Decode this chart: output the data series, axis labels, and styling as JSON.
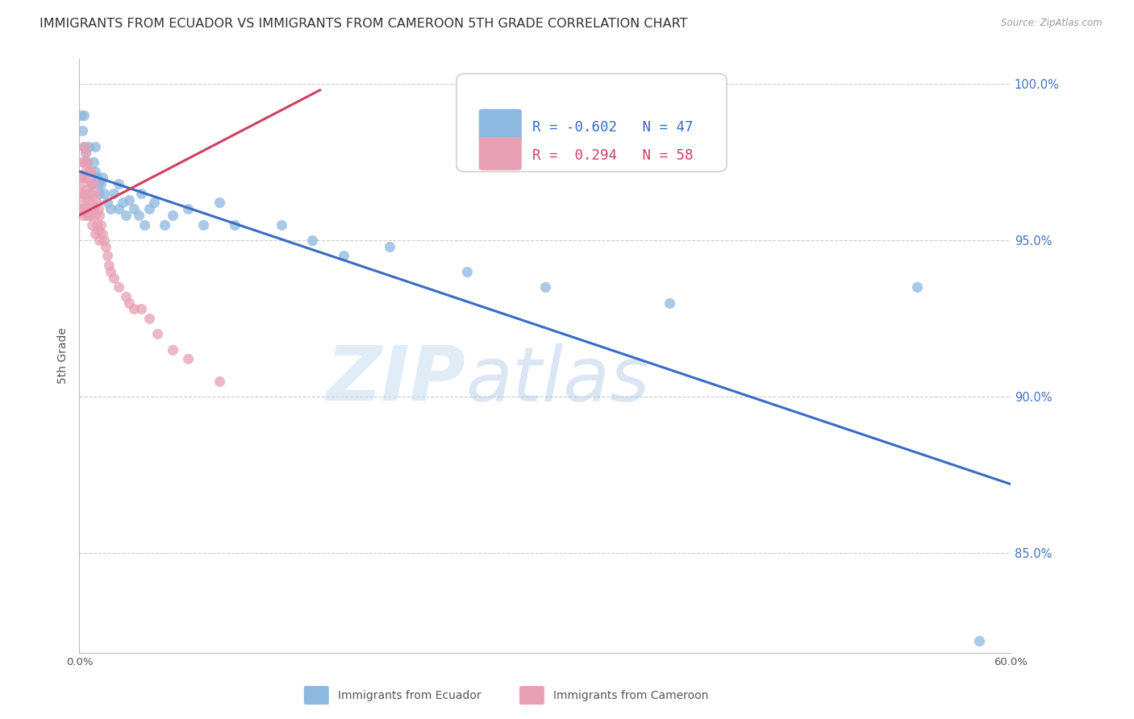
{
  "title": "IMMIGRANTS FROM ECUADOR VS IMMIGRANTS FROM CAMEROON 5TH GRADE CORRELATION CHART",
  "source": "Source: ZipAtlas.com",
  "ylabel": "5th Grade",
  "xlim": [
    0.0,
    0.6
  ],
  "ylim": [
    0.818,
    1.008
  ],
  "xticks": [
    0.0,
    0.1,
    0.2,
    0.3,
    0.4,
    0.5,
    0.6
  ],
  "xticklabels": [
    "0.0%",
    "",
    "",
    "",
    "",
    "",
    "60.0%"
  ],
  "yticks": [
    0.85,
    0.9,
    0.95,
    1.0
  ],
  "yticklabels": [
    "85.0%",
    "90.0%",
    "95.0%",
    "100.0%"
  ],
  "ecuador_color": "#8db8e0",
  "cameroon_color": "#e8a0b4",
  "ecuador_line_color": "#3a6bc4",
  "cameroon_line_color": "#d04060",
  "ecuador_R": -0.602,
  "ecuador_N": 47,
  "cameroon_R": 0.294,
  "cameroon_N": 58,
  "ecuador_scatter_x": [
    0.001,
    0.002,
    0.003,
    0.003,
    0.004,
    0.005,
    0.006,
    0.007,
    0.008,
    0.009,
    0.01,
    0.01,
    0.011,
    0.012,
    0.013,
    0.014,
    0.015,
    0.016,
    0.018,
    0.02,
    0.022,
    0.025,
    0.025,
    0.028,
    0.03,
    0.032,
    0.035,
    0.038,
    0.04,
    0.042,
    0.045,
    0.048,
    0.055,
    0.06,
    0.07,
    0.08,
    0.09,
    0.1,
    0.13,
    0.15,
    0.17,
    0.2,
    0.25,
    0.3,
    0.38,
    0.54,
    0.58
  ],
  "ecuador_scatter_y": [
    0.99,
    0.985,
    0.98,
    0.99,
    0.978,
    0.975,
    0.98,
    0.972,
    0.968,
    0.975,
    0.972,
    0.98,
    0.97,
    0.968,
    0.965,
    0.968,
    0.97,
    0.965,
    0.962,
    0.96,
    0.965,
    0.968,
    0.96,
    0.962,
    0.958,
    0.963,
    0.96,
    0.958,
    0.965,
    0.955,
    0.96,
    0.962,
    0.955,
    0.958,
    0.96,
    0.955,
    0.962,
    0.955,
    0.955,
    0.95,
    0.945,
    0.948,
    0.94,
    0.935,
    0.93,
    0.935,
    0.822
  ],
  "cameroon_scatter_x": [
    0.001,
    0.001,
    0.001,
    0.002,
    0.002,
    0.002,
    0.002,
    0.003,
    0.003,
    0.003,
    0.003,
    0.003,
    0.004,
    0.004,
    0.004,
    0.004,
    0.005,
    0.005,
    0.005,
    0.005,
    0.006,
    0.006,
    0.006,
    0.007,
    0.007,
    0.007,
    0.008,
    0.008,
    0.008,
    0.009,
    0.009,
    0.01,
    0.01,
    0.01,
    0.011,
    0.011,
    0.012,
    0.012,
    0.013,
    0.013,
    0.014,
    0.015,
    0.016,
    0.017,
    0.018,
    0.019,
    0.02,
    0.022,
    0.025,
    0.03,
    0.032,
    0.035,
    0.04,
    0.045,
    0.05,
    0.06,
    0.07,
    0.09
  ],
  "cameroon_scatter_y": [
    0.97,
    0.965,
    0.96,
    0.975,
    0.968,
    0.963,
    0.958,
    0.98,
    0.975,
    0.97,
    0.965,
    0.96,
    0.978,
    0.972,
    0.966,
    0.96,
    0.975,
    0.97,
    0.963,
    0.958,
    0.972,
    0.965,
    0.958,
    0.972,
    0.965,
    0.958,
    0.968,
    0.962,
    0.955,
    0.968,
    0.96,
    0.965,
    0.958,
    0.952,
    0.962,
    0.955,
    0.96,
    0.953,
    0.958,
    0.95,
    0.955,
    0.952,
    0.95,
    0.948,
    0.945,
    0.942,
    0.94,
    0.938,
    0.935,
    0.932,
    0.93,
    0.928,
    0.928,
    0.925,
    0.92,
    0.915,
    0.912,
    0.905
  ],
  "ecuador_trend_x": [
    0.0,
    0.6
  ],
  "ecuador_trend_y": [
    0.972,
    0.872
  ],
  "cameroon_trend_x": [
    0.0,
    0.155
  ],
  "cameroon_trend_y": [
    0.958,
    0.998
  ],
  "watermark_top": "ZIP",
  "watermark_bot": "atlas",
  "bg_color": "#ffffff",
  "grid_color": "#cccccc",
  "title_fontsize": 11.5,
  "axis_label_fontsize": 10,
  "tick_fontsize": 9.5
}
